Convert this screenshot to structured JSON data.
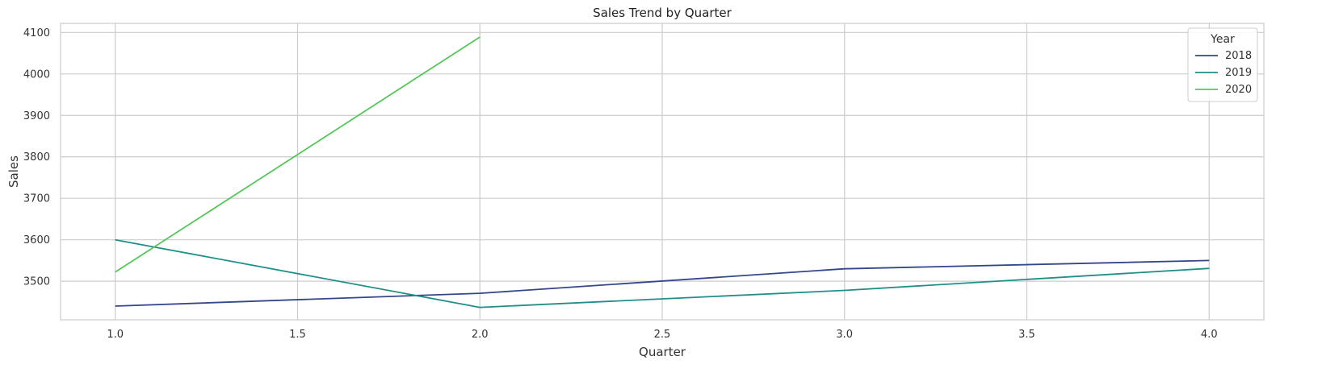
{
  "chart_data": {
    "type": "line",
    "title": "Sales Trend by Quarter",
    "xlabel": "Quarter",
    "ylabel": "Sales",
    "xlim": [
      0.85,
      4.15
    ],
    "ylim": [
      3407,
      4122
    ],
    "xticks": [
      1.0,
      1.5,
      2.0,
      2.5,
      3.0,
      3.5,
      4.0
    ],
    "xtick_labels": [
      "1.0",
      "1.5",
      "2.0",
      "2.5",
      "3.0",
      "3.5",
      "4.0"
    ],
    "yticks": [
      3500,
      3600,
      3700,
      3800,
      3900,
      4000,
      4100
    ],
    "ytick_labels": [
      "3500",
      "3600",
      "3700",
      "3800",
      "3900",
      "4000",
      "4100"
    ],
    "grid": true,
    "legend": {
      "title": "Year",
      "placement": "top-right"
    },
    "series": [
      {
        "name": "2018",
        "color": "#33478c",
        "x": [
          1,
          2,
          3,
          4
        ],
        "y": [
          3440,
          3471,
          3530,
          3550
        ]
      },
      {
        "name": "2019",
        "color": "#1f8f8a",
        "x": [
          1,
          2,
          3,
          4
        ],
        "y": [
          3600,
          3437,
          3478,
          3531
        ]
      },
      {
        "name": "2020",
        "color": "#55c65a",
        "x": [
          1,
          2
        ],
        "y": [
          3522,
          4089
        ]
      }
    ]
  }
}
